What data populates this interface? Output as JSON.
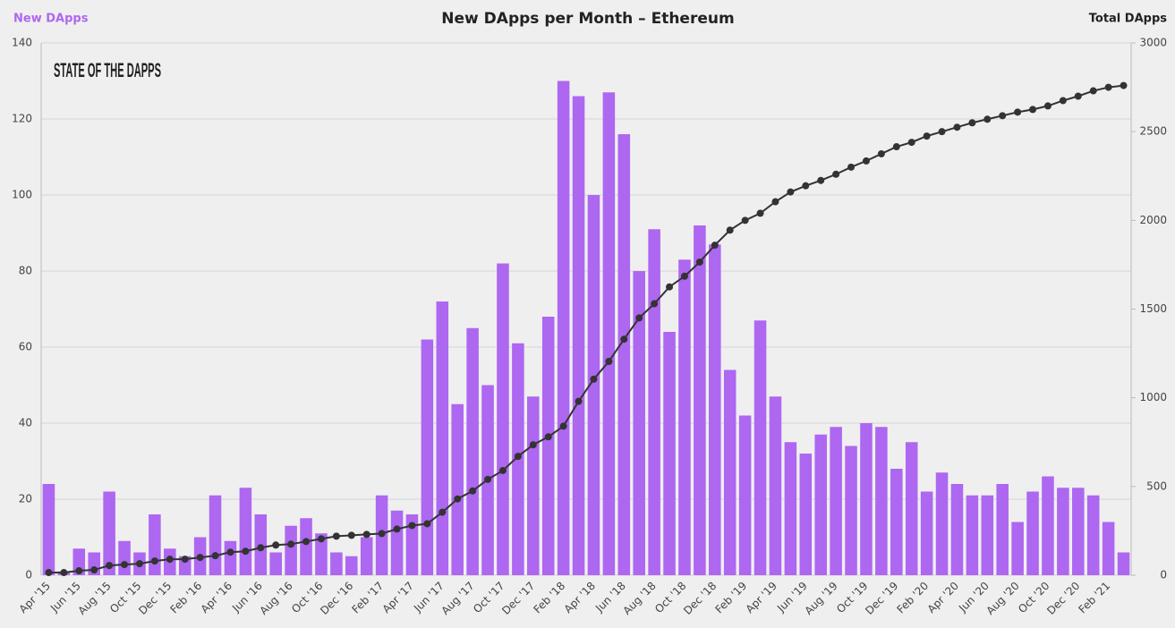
{
  "chart_data": {
    "type": "bar-line",
    "title": "New DApps per Month – Ethereum",
    "logo": "STATE OF THE DAPPS",
    "categories": [
      "Apr '15",
      null,
      "Jun '15",
      null,
      "Aug '15",
      null,
      "Oct '15",
      null,
      "Dec '15",
      null,
      "Feb '16",
      null,
      "Apr '16",
      null,
      "Jun '16",
      null,
      "Aug '16",
      null,
      "Oct '16",
      null,
      "Dec '16",
      null,
      "Feb '17",
      null,
      "Apr '17",
      null,
      "Jun '17",
      null,
      "Aug '17",
      null,
      "Oct '17",
      null,
      "Dec '17",
      null,
      "Feb '18",
      null,
      "Apr '18",
      null,
      "Jun '18",
      null,
      "Aug '18",
      null,
      "Oct '18",
      null,
      "Dec '18",
      null,
      "Feb '19",
      null,
      "Apr '19",
      null,
      "Jun '19",
      null,
      "Aug '19",
      null,
      "Oct '19",
      null,
      "Dec '19",
      null,
      "Feb '20",
      null,
      "Apr '20",
      null,
      "Jun '20",
      null,
      "Aug '20",
      null,
      "Oct '20",
      null,
      "Dec '20",
      null,
      "Feb '21",
      null
    ],
    "series": [
      {
        "name": "New DApps",
        "type": "bar",
        "color": "#ae67f0",
        "axis": "y",
        "values": [
          24,
          1,
          7,
          6,
          22,
          9,
          6,
          16,
          7,
          5,
          10,
          21,
          9,
          23,
          16,
          6,
          13,
          15,
          11,
          6,
          5,
          10,
          21,
          17,
          16,
          62,
          72,
          45,
          65,
          50,
          82,
          61,
          47,
          68,
          130,
          126,
          100,
          127,
          116,
          80,
          91,
          64,
          83,
          92,
          87,
          54,
          42,
          67,
          47,
          35,
          32,
          37,
          39,
          34,
          40,
          39,
          28,
          35,
          22,
          27,
          24,
          21,
          21,
          24,
          14,
          22,
          26,
          23,
          23,
          21,
          14,
          6
        ]
      },
      {
        "name": "Total DApps",
        "type": "line",
        "color": "#333333",
        "axis": "y2",
        "values": [
          15,
          15,
          25,
          30,
          55,
          60,
          65,
          80,
          90,
          90,
          100,
          110,
          130,
          135,
          155,
          170,
          175,
          190,
          205,
          220,
          225,
          230,
          235,
          260,
          280,
          290,
          355,
          430,
          475,
          540,
          590,
          670,
          735,
          780,
          840,
          980,
          1105,
          1205,
          1330,
          1450,
          1530,
          1625,
          1685,
          1765,
          1860,
          1945,
          2000,
          2040,
          2105,
          2160,
          2195,
          2225,
          2260,
          2300,
          2335,
          2375,
          2415,
          2440,
          2475,
          2500,
          2525,
          2550,
          2570,
          2590,
          2610,
          2625,
          2645,
          2675,
          2700,
          2730,
          2750,
          2760
        ]
      }
    ],
    "ylim": [
      0,
      140
    ],
    "yticks": [
      0,
      20,
      40,
      60,
      80,
      100,
      120,
      140
    ],
    "y2lim": [
      0,
      3000
    ],
    "y2ticks": [
      0,
      500,
      1000,
      1500,
      2000,
      2500,
      3000
    ],
    "grid": true
  }
}
